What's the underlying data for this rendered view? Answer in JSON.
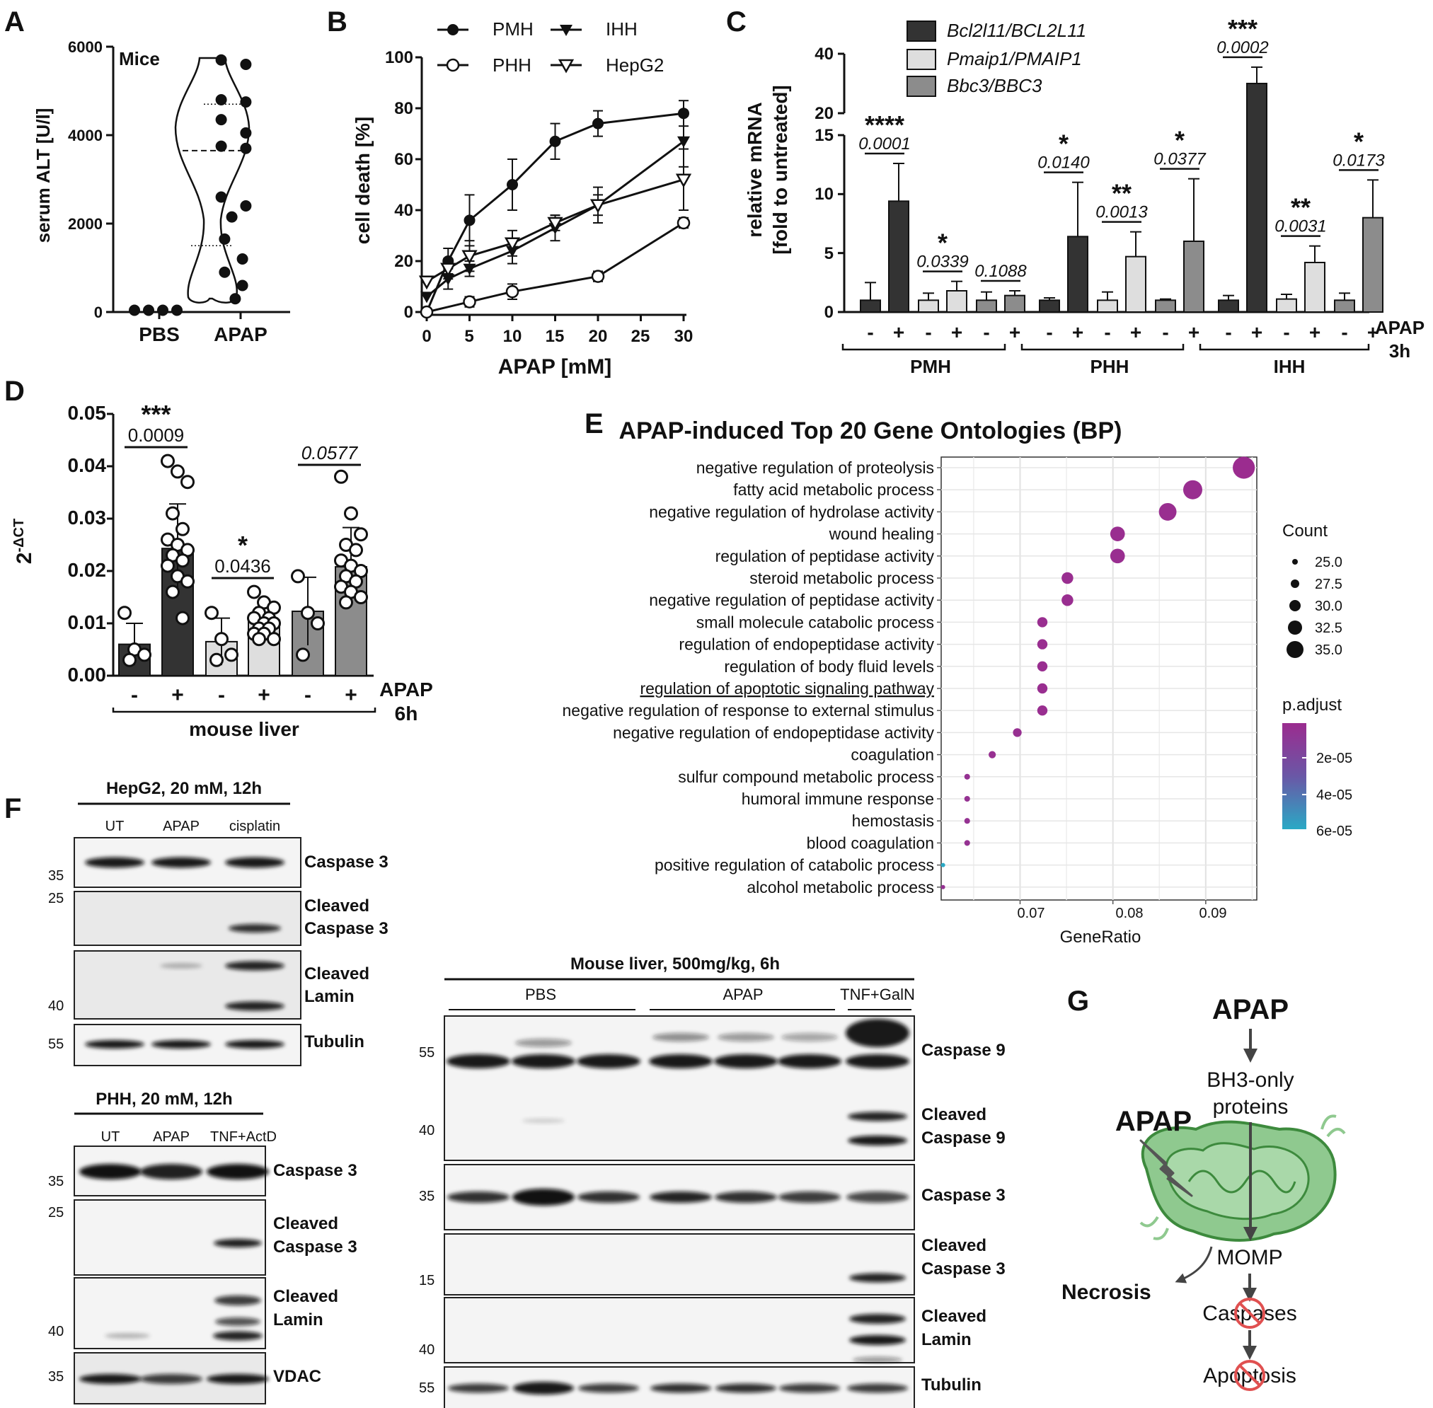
{
  "panel_letters": {
    "a": "A",
    "b": "B",
    "c": "C",
    "d": "D",
    "e": "E",
    "f": "F",
    "g": "G"
  },
  "chart_data": [
    {
      "panel": "A",
      "type": "scatter",
      "subplot": "violin",
      "title": "Mice",
      "ylabel": "serum ALT [U/l]",
      "ylim": [
        0,
        6000
      ],
      "yticks": [
        "0",
        "2000",
        "4000",
        "6000"
      ],
      "categories": [
        "PBS",
        "APAP"
      ],
      "points": {
        "PBS": [
          40,
          40,
          40,
          40
        ],
        "APAP": [
          5700,
          5600,
          4800,
          4750,
          4350,
          4050,
          3750,
          3700,
          2600,
          2400,
          2150,
          1650,
          1200,
          900,
          600,
          300
        ]
      },
      "violin_quartiles": {
        "q1": 1500,
        "median": 3650,
        "q3": 4700
      },
      "colors": {
        "point": "#111111"
      }
    },
    {
      "panel": "B",
      "type": "line",
      "ylabel": "cell death [%]",
      "xlabel": "APAP [mM]",
      "xlim": [
        0,
        30
      ],
      "ylim": [
        0,
        100
      ],
      "xticks": [
        "0",
        "5",
        "10",
        "15",
        "20",
        "25",
        "30"
      ],
      "yticks": [
        "0",
        "20",
        "40",
        "60",
        "80",
        "100"
      ],
      "series": [
        {
          "name": "PMH",
          "marker": "filled-circle",
          "x": [
            0,
            2.5,
            5,
            10,
            15,
            20,
            30
          ],
          "y": [
            0,
            20,
            36,
            50,
            67,
            74,
            78
          ],
          "err": [
            0,
            5,
            10,
            10,
            7,
            5,
            5
          ]
        },
        {
          "name": "PHH",
          "marker": "open-circle",
          "x": [
            0,
            5,
            10,
            20,
            30
          ],
          "y": [
            0,
            4,
            8,
            14,
            35
          ],
          "err": [
            0,
            2,
            3,
            2,
            2
          ]
        },
        {
          "name": "IHH",
          "marker": "filled-triangle-down",
          "x": [
            0,
            2.5,
            5,
            10,
            15,
            20,
            30
          ],
          "y": [
            6,
            13,
            17,
            24,
            33,
            42,
            67
          ],
          "err": [
            0,
            4,
            3,
            5,
            5,
            7,
            10
          ]
        },
        {
          "name": "HepG2",
          "marker": "open-triangle-down",
          "x": [
            0,
            2.5,
            5,
            10,
            15,
            20,
            30
          ],
          "y": [
            12,
            17,
            22,
            27,
            35,
            42,
            52
          ],
          "err": [
            0,
            4,
            6,
            5,
            3,
            4,
            12
          ]
        }
      ]
    },
    {
      "panel": "C",
      "type": "bar",
      "ylabel_lines": [
        "relative mRNA",
        "[fold to untreated]"
      ],
      "axis_break": {
        "lower": [
          0,
          15
        ],
        "upper": [
          20,
          40
        ]
      },
      "yticks_lower": [
        "0",
        "5",
        "10",
        "15"
      ],
      "yticks_upper": [
        "20",
        "40"
      ],
      "legend": [
        {
          "name": "Bcl2l11/BCL2L11",
          "color": "#333333"
        },
        {
          "name": "Pmaip1/PMAIP1",
          "color": "#dedede"
        },
        {
          "name": "Bbc3/BBC3",
          "color": "#8c8c8c"
        }
      ],
      "groups": [
        "PMH",
        "PHH",
        "IHH"
      ],
      "treatment_label_lines": [
        "APAP",
        "3h"
      ],
      "signs": [
        "-",
        "+"
      ],
      "bars": [
        {
          "group": "PMH",
          "gene": "Bcl2l11/BCL2L11",
          "minus": 1.0,
          "plus": 9.4,
          "err_minus": 1.5,
          "err_plus": 3.2,
          "stars": "****",
          "p": "0.0001"
        },
        {
          "group": "PMH",
          "gene": "Pmaip1/PMAIP1",
          "minus": 1.0,
          "plus": 1.8,
          "err_minus": 0.6,
          "err_plus": 0.8,
          "stars": "*",
          "p": "0.0339"
        },
        {
          "group": "PMH",
          "gene": "Bbc3/BBC3",
          "minus": 1.0,
          "plus": 1.4,
          "err_minus": 0.7,
          "err_plus": 0.4,
          "stars": "",
          "p": "0.1088"
        },
        {
          "group": "PHH",
          "gene": "Bcl2l11/BCL2L11",
          "minus": 1.0,
          "plus": 6.4,
          "err_minus": 0.2,
          "err_plus": 4.6,
          "stars": "*",
          "p": "0.0140"
        },
        {
          "group": "PHH",
          "gene": "Pmaip1/PMAIP1",
          "minus": 1.0,
          "plus": 4.7,
          "err_minus": 0.7,
          "err_plus": 2.1,
          "stars": "**",
          "p": "0.0013"
        },
        {
          "group": "PHH",
          "gene": "Bbc3/BBC3",
          "minus": 1.0,
          "plus": 6.0,
          "err_minus": 0.1,
          "err_plus": 5.3,
          "stars": "*",
          "p": "0.0377"
        },
        {
          "group": "IHH",
          "gene": "Bcl2l11/BCL2L11",
          "minus": 1.0,
          "plus": 30.0,
          "err_minus": 0.4,
          "err_plus": 5.5,
          "stars": "***",
          "p": "0.0002"
        },
        {
          "group": "IHH",
          "gene": "Pmaip1/PMAIP1",
          "minus": 1.1,
          "plus": 4.2,
          "err_minus": 0.4,
          "err_plus": 1.4,
          "stars": "**",
          "p": "0.0031"
        },
        {
          "group": "IHH",
          "gene": "Bbc3/BBC3",
          "minus": 1.0,
          "plus": 8.0,
          "err_minus": 0.6,
          "err_plus": 3.2,
          "stars": "*",
          "p": "0.0173"
        }
      ]
    },
    {
      "panel": "D",
      "type": "bar",
      "ylabel": "2-ΔCT",
      "ylabel_base": "2",
      "ylabel_sup": "-ΔCT",
      "ylim": [
        0,
        0.05
      ],
      "yticks": [
        "0.00",
        "0.01",
        "0.02",
        "0.03",
        "0.04",
        "0.05"
      ],
      "group_label": "mouse liver",
      "treatment_label_lines": [
        "APAP",
        "6h"
      ],
      "signs": [
        "-",
        "+"
      ],
      "bars": [
        {
          "sign": "-",
          "value": 0.006,
          "err": 0.004,
          "color": "#333333",
          "points": [
            0.012,
            0.005,
            0.004,
            0.003
          ]
        },
        {
          "sign": "+",
          "value": 0.0243,
          "err": 0.0085,
          "color": "#333333",
          "points": [
            0.041,
            0.039,
            0.037,
            0.031,
            0.028,
            0.026,
            0.025,
            0.024,
            0.023,
            0.022,
            0.021,
            0.019,
            0.018,
            0.016,
            0.011
          ]
        },
        {
          "sign": "-",
          "value": 0.0065,
          "err": 0.0045,
          "color": "#dedede",
          "points": [
            0.012,
            0.007,
            0.004,
            0.003
          ]
        },
        {
          "sign": "+",
          "value": 0.0106,
          "err": 0.0025,
          "color": "#dedede",
          "points": [
            0.016,
            0.014,
            0.013,
            0.012,
            0.011,
            0.011,
            0.01,
            0.01,
            0.009,
            0.009,
            0.008,
            0.008,
            0.007,
            0.007
          ]
        },
        {
          "sign": "-",
          "value": 0.0123,
          "err": 0.0065,
          "color": "#8c8c8c",
          "points": [
            0.019,
            0.012,
            0.01,
            0.004
          ]
        },
        {
          "sign": "+",
          "value": 0.0208,
          "err": 0.0075,
          "color": "#8c8c8c",
          "points": [
            0.038,
            0.031,
            0.027,
            0.025,
            0.024,
            0.022,
            0.021,
            0.02,
            0.019,
            0.018,
            0.017,
            0.016,
            0.015,
            0.014
          ]
        }
      ],
      "comparisons": [
        {
          "stars": "***",
          "p": "0.0009",
          "italic": false
        },
        {
          "stars": "*",
          "p": "0.0436",
          "italic": false
        },
        {
          "stars": "",
          "p": "0.0577",
          "italic": true
        }
      ]
    },
    {
      "panel": "E",
      "type": "scatter",
      "subplot": "dotplot",
      "title": "APAP-induced Top 20 Gene Ontologies (BP)",
      "xlabel": "GeneRatio",
      "xlim": [
        0.0615,
        0.0955
      ],
      "xticks": [
        "0.07",
        "0.08",
        "0.09"
      ],
      "terms": [
        {
          "term": "negative regulation of proteolysis",
          "ratio": 0.0941,
          "count": 35,
          "p_adjust": 1e-06
        },
        {
          "term": "fatty acid metabolic process",
          "ratio": 0.0886,
          "count": 33,
          "p_adjust": 2e-06
        },
        {
          "term": "negative regulation of hydrolase activity",
          "ratio": 0.0859,
          "count": 32,
          "p_adjust": 2e-06
        },
        {
          "term": "wound healing",
          "ratio": 0.0805,
          "count": 30,
          "p_adjust": 2e-06
        },
        {
          "term": "regulation of peptidase activity",
          "ratio": 0.0805,
          "count": 30,
          "p_adjust": 2e-06
        },
        {
          "term": "steroid metabolic process",
          "ratio": 0.0751,
          "count": 28,
          "p_adjust": 2e-06
        },
        {
          "term": "negative regulation of peptidase activity",
          "ratio": 0.0751,
          "count": 28,
          "p_adjust": 2e-06
        },
        {
          "term": "small molecule catabolic process",
          "ratio": 0.0724,
          "count": 27,
          "p_adjust": 2e-06
        },
        {
          "term": "regulation of endopeptidase activity",
          "ratio": 0.0724,
          "count": 27,
          "p_adjust": 2e-06
        },
        {
          "term": "regulation of body fluid levels",
          "ratio": 0.0724,
          "count": 27,
          "p_adjust": 2e-06
        },
        {
          "term": "regulation of apoptotic signaling pathway",
          "ratio": 0.0724,
          "count": 27,
          "p_adjust": 2e-06,
          "underlined": true
        },
        {
          "term": "negative regulation of response to external stimulus",
          "ratio": 0.0724,
          "count": 27,
          "p_adjust": 2e-06
        },
        {
          "term": "negative regulation of endopeptidase activity",
          "ratio": 0.0697,
          "count": 26,
          "p_adjust": 3e-06
        },
        {
          "term": "coagulation",
          "ratio": 0.067,
          "count": 25,
          "p_adjust": 3e-06
        },
        {
          "term": "sulfur compound metabolic process",
          "ratio": 0.0643,
          "count": 24,
          "p_adjust": 4e-06
        },
        {
          "term": "humoral immune response",
          "ratio": 0.0643,
          "count": 24,
          "p_adjust": 4e-06
        },
        {
          "term": "hemostasis",
          "ratio": 0.0643,
          "count": 24,
          "p_adjust": 4e-06
        },
        {
          "term": "blood coagulation",
          "ratio": 0.0643,
          "count": 24,
          "p_adjust": 4e-06
        },
        {
          "term": "positive regulation of catabolic process",
          "ratio": 0.0617,
          "count": 23,
          "p_adjust": 6.2e-05
        },
        {
          "term": "alcohol metabolic process",
          "ratio": 0.0617,
          "count": 23,
          "p_adjust": 4e-06
        }
      ],
      "legend_count": {
        "title": "Count",
        "labels": [
          "25.0",
          "27.5",
          "30.0",
          "32.5",
          "35.0"
        ]
      },
      "legend_padj": {
        "title": "p.adjust",
        "labels": [
          "2e-05",
          "4e-05",
          "6e-05"
        ],
        "colors": [
          "#9b2c8f",
          "#6a57a6",
          "#2aa9c5"
        ]
      }
    }
  ],
  "blots": {
    "hepg2": {
      "title": "HepG2, 20 mM, 12h",
      "lanes": [
        "UT",
        "APAP",
        "cisplatin"
      ],
      "rows": [
        {
          "label_lines": [
            "Caspase 3"
          ],
          "marker": "35"
        },
        {
          "label_lines": [
            "Cleaved",
            "Caspase 3"
          ],
          "marker": "25"
        },
        {
          "label_lines": [
            "Cleaved",
            "Lamin"
          ],
          "marker": "40"
        },
        {
          "label_lines": [
            "Tubulin"
          ],
          "marker": "55"
        }
      ]
    },
    "phh": {
      "title": "PHH, 20 mM, 12h",
      "lanes": [
        "UT",
        "APAP",
        "TNF+ActD"
      ],
      "rows": [
        {
          "label_lines": [
            "Caspase 3"
          ],
          "marker": "35"
        },
        {
          "label_lines": [
            "Cleaved",
            "Caspase 3"
          ],
          "marker": "25"
        },
        {
          "label_lines": [
            "Cleaved",
            "Lamin"
          ],
          "marker": "40"
        },
        {
          "label_lines": [
            "VDAC"
          ],
          "marker": "35"
        }
      ]
    },
    "mouse": {
      "title": "Mouse liver, 500mg/kg, 6h",
      "lane_groups": [
        "PBS",
        "APAP",
        "TNF+GalN"
      ],
      "rows": [
        {
          "label_lines": [
            "Caspase 9"
          ],
          "marker": "55"
        },
        {
          "label_lines": [
            "Cleaved",
            "Caspase 9"
          ],
          "marker": "40"
        },
        {
          "label_lines": [
            "Caspase 3"
          ],
          "marker": "35"
        },
        {
          "label_lines": [
            "Cleaved",
            "Caspase 3"
          ],
          "marker": "15"
        },
        {
          "label_lines": [
            "Cleaved",
            "Lamin"
          ],
          "marker": "40"
        },
        {
          "label_lines": [
            "Tubulin"
          ],
          "marker": "55"
        }
      ]
    }
  },
  "schematic": {
    "apap_top": "APAP",
    "bh3_lines": [
      "BH3-only",
      "proteins"
    ],
    "apap_side": "APAP",
    "momp": "MOMP",
    "necrosis": "Necrosis",
    "caspases": "Caspases",
    "apoptosis": "Apoptosis",
    "colors": {
      "mito_fill": "#8fc98f",
      "mito_stroke": "#3d8a3d",
      "inhibit": "#e05050"
    }
  }
}
